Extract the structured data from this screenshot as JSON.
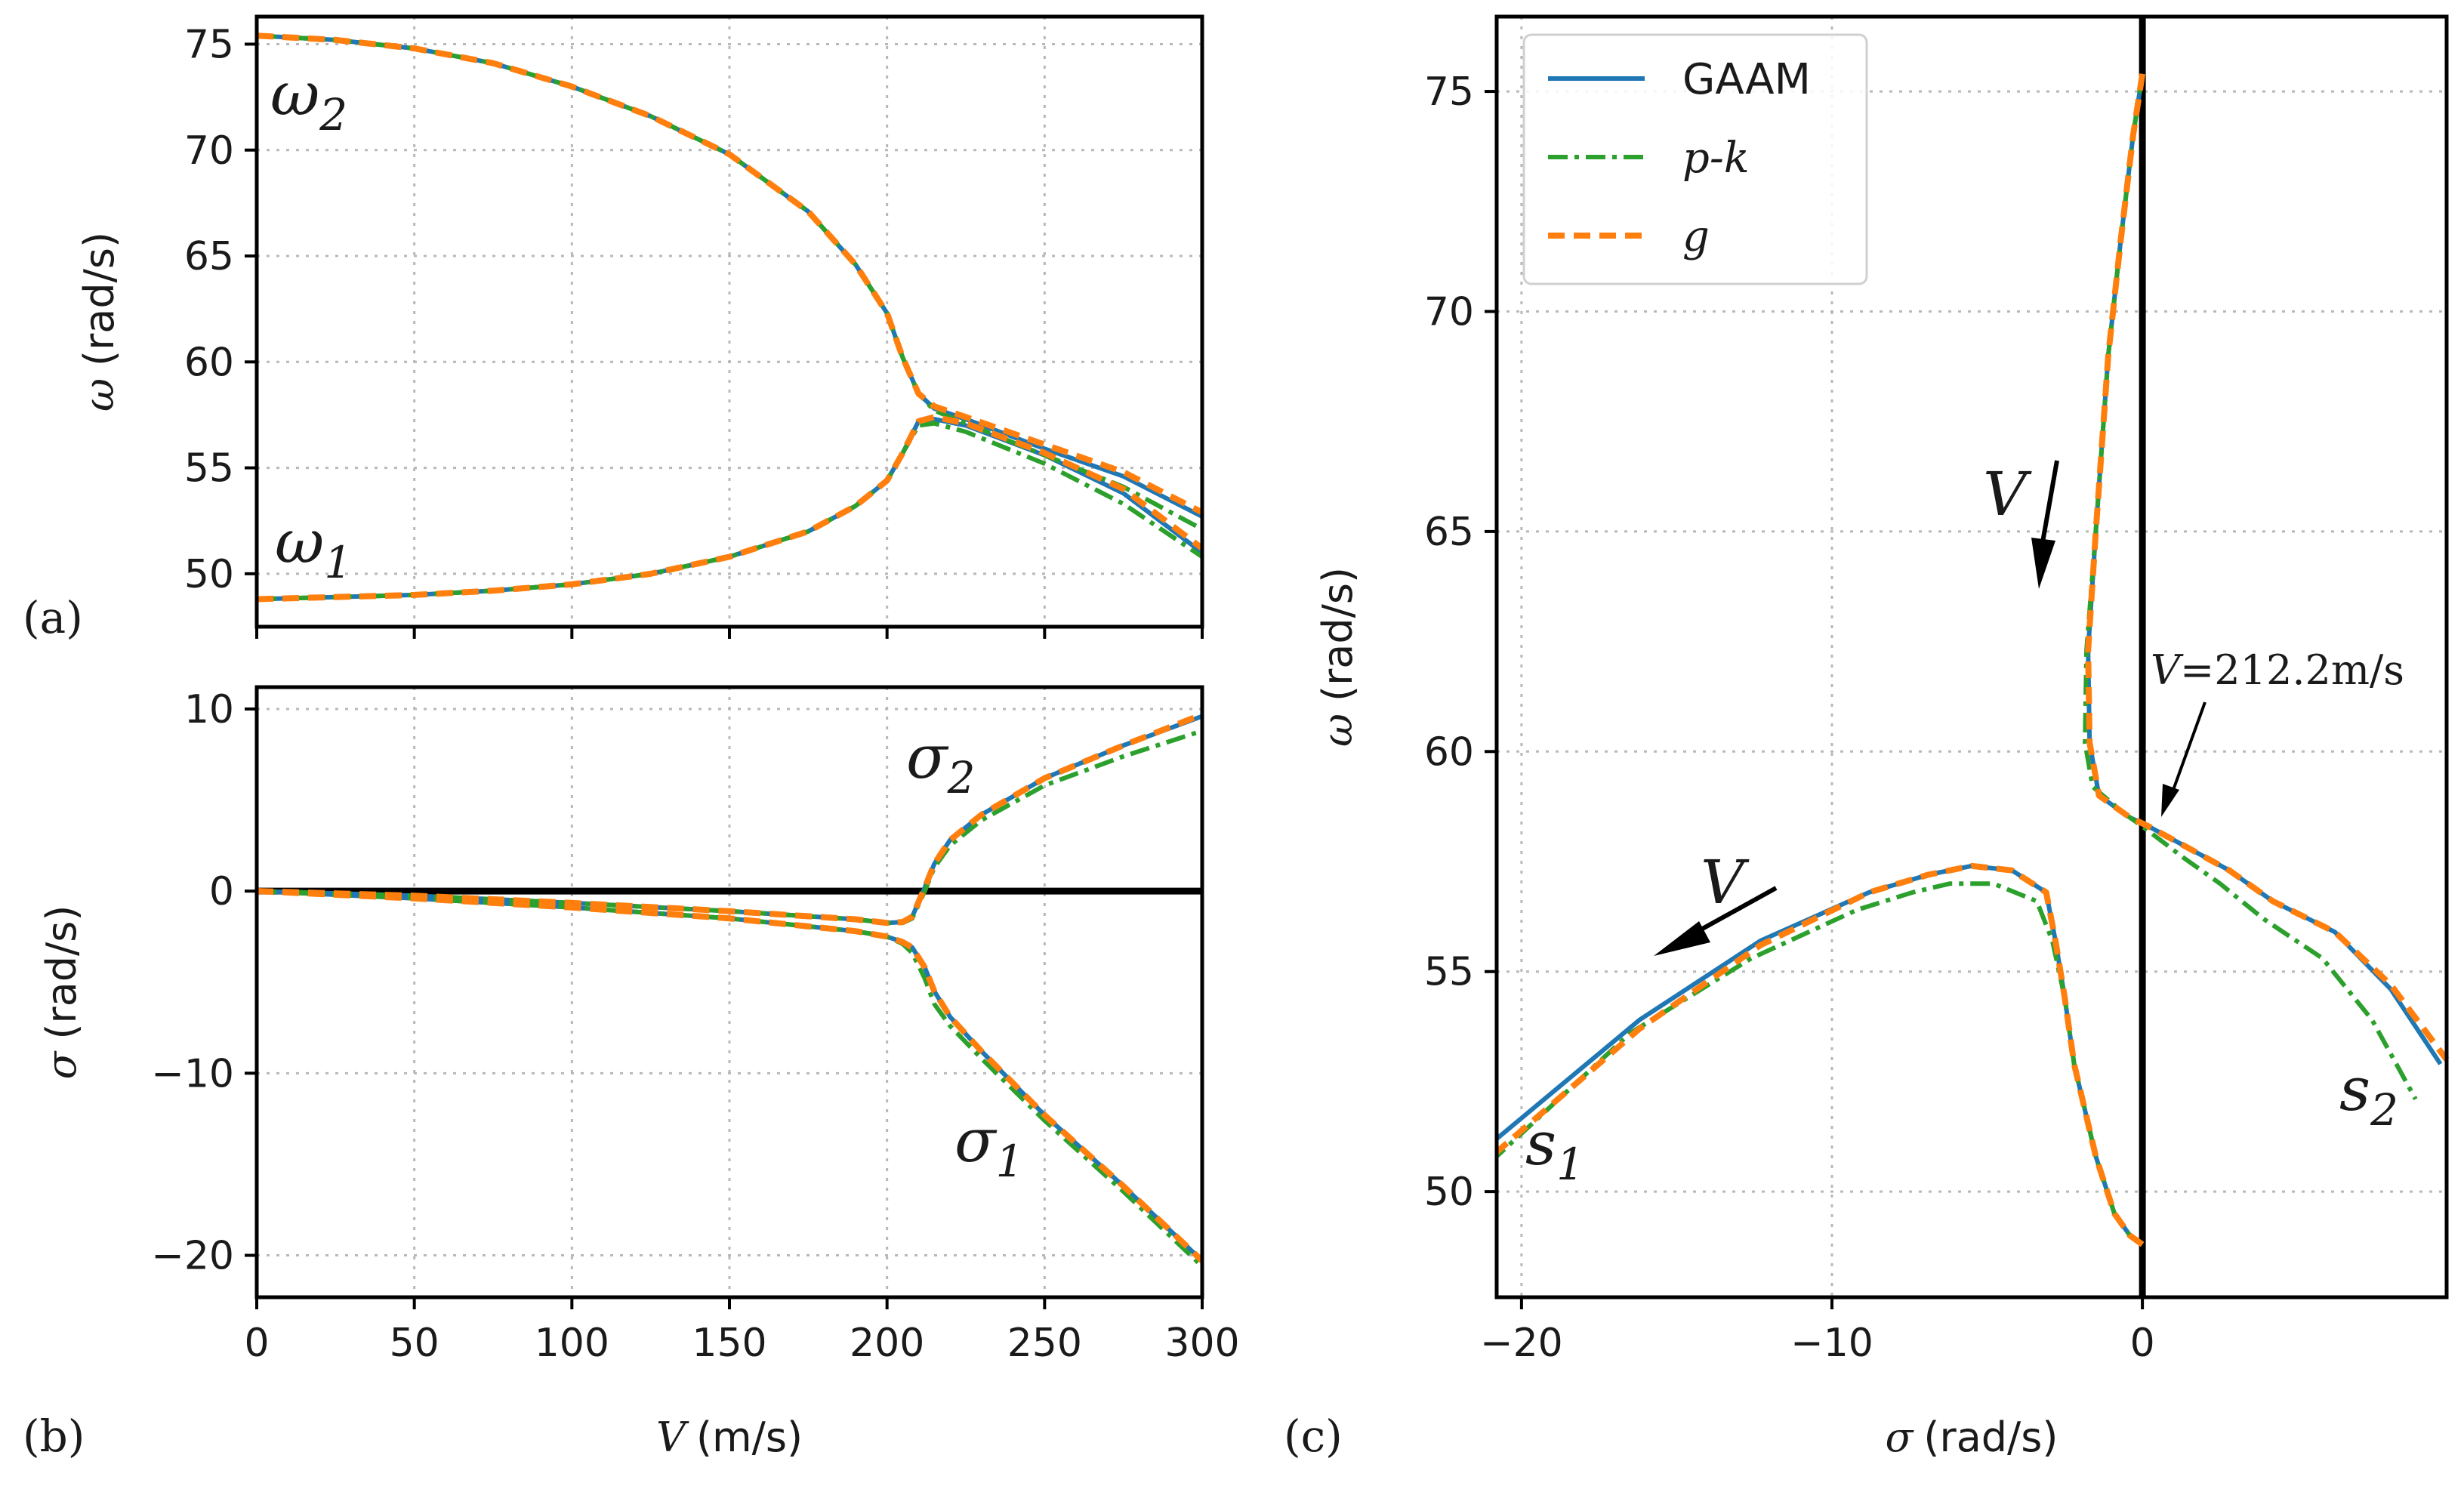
{
  "colors": {
    "GAAM": "#1f77b4",
    "pk": "#2ca02c",
    "g": "#ff7f0e",
    "zero_line": "#000000"
  },
  "legend": {
    "gaam": "GAAM",
    "pk": "p-k",
    "g": "g"
  },
  "panel_labels": {
    "a": "(a)",
    "b": "(b)",
    "c": "(c)"
  },
  "annotations": {
    "omega1": {
      "base": "ω",
      "sub": "1"
    },
    "omega2": {
      "base": "ω",
      "sub": "2"
    },
    "sigma1": {
      "base": "σ",
      "sub": "1"
    },
    "sigma2": {
      "base": "σ",
      "sub": "2"
    },
    "s1": {
      "base": "s",
      "sub": "1"
    },
    "s2": {
      "base": "s",
      "sub": "2"
    },
    "arrow_v": "V",
    "flutter_v": "V",
    "flutter_speed": "=212.2m/s"
  },
  "chart_data": [
    {
      "id": "a",
      "type": "line",
      "xlabel": "",
      "ylabel_symbol": "ω",
      "ylabel_unit": "(rad/s)",
      "xlim": [
        0,
        300
      ],
      "ylim": [
        47.5,
        76.3
      ],
      "xticks": [
        0,
        50,
        100,
        150,
        200,
        250,
        300
      ],
      "yticks": [
        50,
        55,
        60,
        65,
        70,
        75
      ],
      "grid": true,
      "series": [
        {
          "name": "GAAM",
          "branch": "ω2",
          "x": [
            0,
            25,
            50,
            75,
            100,
            125,
            150,
            175,
            190,
            200,
            205,
            210,
            215,
            225,
            250,
            275,
            300
          ],
          "y": [
            75.4,
            75.2,
            74.8,
            74.1,
            73.0,
            71.6,
            69.8,
            67.1,
            64.6,
            62.3,
            60.2,
            58.5,
            57.8,
            57.3,
            55.9,
            54.6,
            52.7
          ]
        },
        {
          "name": "GAAM",
          "branch": "ω1",
          "x": [
            0,
            25,
            50,
            75,
            100,
            125,
            150,
            175,
            190,
            200,
            205,
            210,
            215,
            225,
            250,
            275,
            300
          ],
          "y": [
            48.8,
            48.9,
            49.0,
            49.2,
            49.5,
            50.0,
            50.8,
            52.0,
            53.2,
            54.4,
            55.7,
            57.2,
            57.3,
            57.0,
            55.6,
            53.8,
            51.0
          ]
        },
        {
          "name": "p-k",
          "branch": "ω2",
          "x": [
            0,
            25,
            50,
            75,
            100,
            125,
            150,
            175,
            190,
            200,
            205,
            210,
            215,
            225,
            250,
            275,
            300
          ],
          "y": [
            75.4,
            75.2,
            74.8,
            74.1,
            73.0,
            71.6,
            69.8,
            67.1,
            64.6,
            62.3,
            60.2,
            58.5,
            57.7,
            57.1,
            55.6,
            54.1,
            52.1
          ]
        },
        {
          "name": "p-k",
          "branch": "ω1",
          "x": [
            0,
            25,
            50,
            75,
            100,
            125,
            150,
            175,
            190,
            200,
            205,
            210,
            215,
            225,
            250,
            275,
            300
          ],
          "y": [
            48.8,
            48.9,
            49.0,
            49.2,
            49.5,
            50.0,
            50.8,
            52.0,
            53.2,
            54.4,
            55.7,
            57.0,
            57.1,
            56.7,
            55.2,
            53.3,
            50.8
          ]
        },
        {
          "name": "g",
          "branch": "ω2",
          "x": [
            0,
            25,
            50,
            75,
            100,
            125,
            150,
            175,
            190,
            200,
            205,
            210,
            215,
            225,
            250,
            275,
            300
          ],
          "y": [
            75.4,
            75.2,
            74.8,
            74.1,
            73.0,
            71.6,
            69.8,
            67.1,
            64.6,
            62.3,
            60.2,
            58.5,
            57.9,
            57.4,
            56.1,
            54.8,
            52.9
          ]
        },
        {
          "name": "g",
          "branch": "ω1",
          "x": [
            0,
            25,
            50,
            75,
            100,
            125,
            150,
            175,
            190,
            200,
            205,
            210,
            215,
            225,
            250,
            275,
            300
          ],
          "y": [
            48.8,
            48.9,
            49.0,
            49.2,
            49.5,
            50.0,
            50.8,
            52.0,
            53.2,
            54.4,
            55.7,
            57.2,
            57.4,
            57.1,
            55.7,
            54.0,
            51.2
          ]
        }
      ]
    },
    {
      "id": "b",
      "type": "line",
      "xlabel_symbol": "V",
      "xlabel_unit": "(m/s)",
      "ylabel_symbol": "σ",
      "ylabel_unit": "(rad/s)",
      "xlim": [
        0,
        300
      ],
      "ylim": [
        -22.3,
        11.2
      ],
      "xticks": [
        0,
        50,
        100,
        150,
        200,
        250,
        300
      ],
      "yticks": [
        -20,
        -10,
        0,
        10
      ],
      "grid": true,
      "series": [
        {
          "name": "GAAM",
          "branch": "σ2",
          "x": [
            0,
            50,
            100,
            150,
            190,
            200,
            205,
            208,
            212,
            215,
            220,
            230,
            250,
            275,
            300
          ],
          "y": [
            0,
            -0.25,
            -0.65,
            -1.1,
            -1.55,
            -1.75,
            -1.7,
            -1.4,
            0.2,
            1.5,
            2.8,
            4.2,
            6.2,
            8.0,
            9.6
          ]
        },
        {
          "name": "GAAM",
          "branch": "σ1",
          "x": [
            0,
            50,
            100,
            150,
            190,
            200,
            205,
            208,
            212,
            215,
            220,
            230,
            250,
            275,
            300
          ],
          "y": [
            0,
            -0.4,
            -0.9,
            -1.5,
            -2.2,
            -2.5,
            -2.8,
            -3.1,
            -4.2,
            -5.5,
            -6.9,
            -8.8,
            -12.3,
            -16.2,
            -20.3
          ]
        },
        {
          "name": "p-k",
          "branch": "σ2",
          "x": [
            0,
            50,
            100,
            150,
            190,
            200,
            205,
            208,
            212,
            215,
            220,
            230,
            250,
            275,
            300
          ],
          "y": [
            0,
            -0.25,
            -0.65,
            -1.1,
            -1.55,
            -1.75,
            -1.75,
            -1.5,
            0.0,
            1.3,
            2.5,
            3.9,
            5.8,
            7.4,
            8.8
          ]
        },
        {
          "name": "p-k",
          "branch": "σ1",
          "x": [
            0,
            50,
            100,
            150,
            190,
            200,
            205,
            208,
            212,
            215,
            220,
            230,
            250,
            275,
            300
          ],
          "y": [
            0,
            -0.4,
            -0.9,
            -1.5,
            -2.2,
            -2.5,
            -2.9,
            -3.4,
            -4.8,
            -6.2,
            -7.4,
            -9.2,
            -12.6,
            -16.5,
            -20.6
          ]
        },
        {
          "name": "g",
          "branch": "σ2",
          "x": [
            0,
            50,
            100,
            150,
            190,
            200,
            205,
            208,
            212,
            215,
            220,
            230,
            250,
            275,
            300
          ],
          "y": [
            0,
            -0.25,
            -0.65,
            -1.1,
            -1.55,
            -1.75,
            -1.7,
            -1.4,
            0.2,
            1.5,
            2.8,
            4.2,
            6.2,
            8.0,
            9.7
          ]
        },
        {
          "name": "g",
          "branch": "σ1",
          "x": [
            0,
            50,
            100,
            150,
            190,
            200,
            205,
            208,
            212,
            215,
            220,
            230,
            250,
            275,
            300
          ],
          "y": [
            0,
            -0.4,
            -0.9,
            -1.5,
            -2.2,
            -2.5,
            -2.8,
            -3.1,
            -4.2,
            -5.5,
            -6.9,
            -8.8,
            -12.3,
            -16.2,
            -20.3
          ]
        }
      ]
    },
    {
      "id": "c",
      "type": "line",
      "xlabel_symbol": "σ",
      "xlabel_unit": "(rad/s)",
      "ylabel_symbol": "ω",
      "ylabel_unit": "(rad/s)",
      "xlim": [
        -20.8,
        9.8
      ],
      "ylim": [
        47.6,
        76.7
      ],
      "xticks": [
        -20,
        -10,
        0
      ],
      "yticks": [
        50,
        55,
        60,
        65,
        70,
        75
      ],
      "grid": true,
      "series": [
        {
          "name": "GAAM",
          "branch": "s2",
          "x": [
            0,
            -0.3,
            -0.7,
            -1.1,
            -1.5,
            -1.75,
            -1.7,
            -1.4,
            -0.4,
            0.2,
            1.5,
            2.8,
            4.2,
            6.2,
            8.0,
            9.6
          ],
          "y": [
            75.4,
            74.0,
            71.6,
            69.0,
            65.0,
            62.3,
            60.2,
            59.0,
            58.5,
            58.3,
            57.8,
            57.3,
            56.6,
            55.9,
            54.6,
            52.9
          ]
        },
        {
          "name": "GAAM",
          "branch": "s1",
          "x": [
            0,
            -0.4,
            -0.9,
            -1.5,
            -2.2,
            -2.5,
            -2.8,
            -3.1,
            -4.2,
            -5.5,
            -6.9,
            -8.8,
            -12.3,
            -16.2,
            -20.8
          ],
          "y": [
            48.8,
            49.0,
            49.5,
            50.8,
            52.9,
            54.4,
            55.7,
            56.8,
            57.3,
            57.4,
            57.2,
            56.8,
            55.7,
            53.9,
            51.2
          ]
        },
        {
          "name": "p-k",
          "branch": "s2",
          "x": [
            0,
            -0.3,
            -0.7,
            -1.1,
            -1.5,
            -1.8,
            -1.85,
            -1.6,
            -0.6,
            0.0,
            1.3,
            2.5,
            3.9,
            5.8,
            7.4,
            8.8
          ],
          "y": [
            75.4,
            74.0,
            71.6,
            69.0,
            65.0,
            62.3,
            60.2,
            59.2,
            58.6,
            58.3,
            57.6,
            57.0,
            56.2,
            55.3,
            53.9,
            52.1
          ]
        },
        {
          "name": "p-k",
          "branch": "s1",
          "x": [
            0,
            -0.4,
            -0.9,
            -1.5,
            -2.2,
            -2.5,
            -2.9,
            -3.4,
            -4.8,
            -6.2,
            -7.4,
            -9.2,
            -12.6,
            -16.5,
            -20.8
          ],
          "y": [
            48.8,
            49.0,
            49.5,
            50.8,
            52.9,
            54.4,
            55.7,
            56.6,
            57.0,
            57.0,
            56.8,
            56.4,
            55.3,
            53.6,
            50.8
          ]
        },
        {
          "name": "g",
          "branch": "s2",
          "x": [
            0,
            -0.3,
            -0.7,
            -1.1,
            -1.5,
            -1.75,
            -1.7,
            -1.4,
            -0.4,
            0.2,
            1.5,
            2.8,
            4.2,
            6.2,
            8.0,
            9.8
          ],
          "y": [
            75.4,
            74.0,
            71.6,
            69.0,
            65.0,
            62.3,
            60.2,
            59.0,
            58.5,
            58.3,
            57.8,
            57.3,
            56.6,
            55.9,
            54.7,
            53.0
          ]
        },
        {
          "name": "g",
          "branch": "s1",
          "x": [
            0,
            -0.4,
            -0.9,
            -1.5,
            -2.2,
            -2.5,
            -2.8,
            -3.1,
            -4.2,
            -5.5,
            -6.9,
            -8.8,
            -12.3,
            -16.2,
            -20.8
          ],
          "y": [
            48.8,
            49.0,
            49.5,
            50.8,
            52.9,
            54.4,
            55.7,
            56.8,
            57.3,
            57.4,
            57.2,
            56.8,
            55.6,
            53.7,
            50.9
          ]
        }
      ]
    }
  ]
}
